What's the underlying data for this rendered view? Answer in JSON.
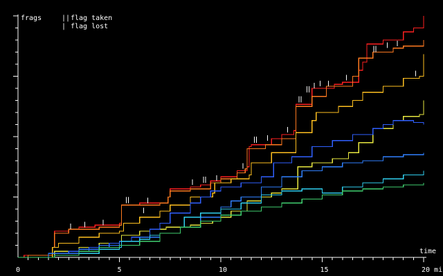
{
  "chart_data": {
    "type": "line",
    "title": "",
    "ylabel": "frags",
    "xlabel": "time",
    "x_tick_labels": [
      "0",
      "5",
      "10",
      "15",
      "20 min"
    ],
    "x_ticks": [
      0,
      5,
      10,
      15,
      20
    ],
    "xlim": [
      0,
      20
    ],
    "ylim": [
      0,
      120
    ],
    "y_major_ticks": [
      30,
      60,
      90,
      120
    ],
    "legend": [
      {
        "symbol": "||",
        "label": "flag taken"
      },
      {
        "symbol": "|",
        "label": "flag lost"
      }
    ],
    "grid": false,
    "series": [
      {
        "color": "#ff2020",
        "points": [
          [
            0,
            0
          ],
          [
            0.3,
            1
          ],
          [
            1.7,
            5
          ],
          [
            1.8,
            13
          ],
          [
            2.5,
            14
          ],
          [
            3,
            15
          ],
          [
            3.7,
            15
          ],
          [
            3.8,
            16
          ],
          [
            5,
            17
          ],
          [
            5.1,
            26
          ],
          [
            6,
            27
          ],
          [
            7.4,
            30
          ],
          [
            7.5,
            34
          ],
          [
            8.5,
            35
          ],
          [
            9,
            36
          ],
          [
            9.5,
            38
          ],
          [
            10,
            40
          ],
          [
            10.8,
            43
          ],
          [
            11.3,
            45
          ],
          [
            11.4,
            55
          ],
          [
            11.5,
            56
          ],
          [
            12.5,
            59
          ],
          [
            13,
            61
          ],
          [
            13.6,
            63
          ],
          [
            13.7,
            76
          ],
          [
            14.5,
            84
          ],
          [
            15.6,
            86
          ],
          [
            16,
            87
          ],
          [
            16.8,
            93
          ],
          [
            17,
            97
          ],
          [
            17.2,
            106
          ],
          [
            18,
            108
          ],
          [
            19,
            112
          ],
          [
            19.5,
            114
          ],
          [
            20,
            116
          ],
          [
            20,
            120
          ]
        ]
      },
      {
        "color": "#ff7a20",
        "points": [
          [
            0,
            0
          ],
          [
            0.5,
            1
          ],
          [
            1.7,
            5
          ],
          [
            1.8,
            12
          ],
          [
            2.5,
            14
          ],
          [
            3,
            14
          ],
          [
            4,
            15
          ],
          [
            5,
            16
          ],
          [
            5.1,
            26
          ],
          [
            6,
            26
          ],
          [
            7,
            27
          ],
          [
            7.4,
            30
          ],
          [
            7.5,
            33
          ],
          [
            8.5,
            34
          ],
          [
            9.5,
            37
          ],
          [
            10,
            39
          ],
          [
            10.8,
            42
          ],
          [
            11.2,
            44
          ],
          [
            11.3,
            54
          ],
          [
            12.2,
            56
          ],
          [
            13,
            59
          ],
          [
            13.7,
            75
          ],
          [
            14.5,
            80
          ],
          [
            15.2,
            85
          ],
          [
            16.5,
            90
          ],
          [
            16.8,
            99
          ],
          [
            17.5,
            102
          ],
          [
            18.5,
            104
          ],
          [
            19,
            105
          ],
          [
            20,
            108
          ]
        ]
      },
      {
        "color": "#ffc020",
        "points": [
          [
            0,
            0
          ],
          [
            1.7,
            5
          ],
          [
            2,
            7
          ],
          [
            3,
            10
          ],
          [
            4,
            12
          ],
          [
            5,
            13
          ],
          [
            5.2,
            17
          ],
          [
            6,
            20
          ],
          [
            7,
            23
          ],
          [
            7.5,
            26
          ],
          [
            8.5,
            30
          ],
          [
            9.6,
            32
          ],
          [
            9.7,
            37
          ],
          [
            10.5,
            39
          ],
          [
            11.4,
            41
          ],
          [
            11.5,
            47
          ],
          [
            12.5,
            52
          ],
          [
            13.7,
            62
          ],
          [
            14.5,
            68
          ],
          [
            14.7,
            72
          ],
          [
            15.8,
            75
          ],
          [
            16.5,
            78
          ],
          [
            17,
            82
          ],
          [
            18,
            85
          ],
          [
            19,
            89
          ],
          [
            19.8,
            90
          ],
          [
            20,
            101
          ]
        ]
      },
      {
        "color": "#e8e840",
        "points": [
          [
            0,
            0
          ],
          [
            1.8,
            3
          ],
          [
            3,
            5
          ],
          [
            4,
            7
          ],
          [
            5,
            8
          ],
          [
            5.1,
            11
          ],
          [
            6,
            13
          ],
          [
            6.5,
            14
          ],
          [
            7.3,
            15
          ],
          [
            8.5,
            16
          ],
          [
            9,
            17
          ],
          [
            9.6,
            18
          ],
          [
            10,
            20
          ],
          [
            10.5,
            23
          ],
          [
            11.3,
            28
          ],
          [
            12,
            30
          ],
          [
            12.5,
            32
          ],
          [
            13,
            34
          ],
          [
            13.8,
            45
          ],
          [
            14.5,
            47
          ],
          [
            15.5,
            49
          ],
          [
            16.3,
            52
          ],
          [
            16.8,
            57
          ],
          [
            17.5,
            64
          ],
          [
            18.5,
            68
          ],
          [
            19,
            70
          ],
          [
            19.8,
            71
          ],
          [
            20,
            78
          ]
        ]
      },
      {
        "color": "#3060ff",
        "points": [
          [
            0,
            0
          ],
          [
            1.5,
            2
          ],
          [
            2.5,
            3
          ],
          [
            3.5,
            5
          ],
          [
            4.5,
            7
          ],
          [
            5,
            8
          ],
          [
            5.6,
            10
          ],
          [
            6.5,
            14
          ],
          [
            7,
            17
          ],
          [
            7.5,
            22
          ],
          [
            8.5,
            27
          ],
          [
            9,
            30
          ],
          [
            9.5,
            33
          ],
          [
            10,
            35
          ],
          [
            11,
            37
          ],
          [
            12,
            40
          ],
          [
            12.6,
            47
          ],
          [
            13.5,
            50
          ],
          [
            14.5,
            55
          ],
          [
            15.5,
            58
          ],
          [
            16.5,
            61
          ],
          [
            17.5,
            64
          ],
          [
            18,
            66
          ],
          [
            18.5,
            68
          ],
          [
            19.5,
            67
          ],
          [
            20,
            66
          ]
        ]
      },
      {
        "color": "#3080ff",
        "points": [
          [
            0,
            0
          ],
          [
            1.5,
            2
          ],
          [
            3,
            4
          ],
          [
            4,
            6
          ],
          [
            5,
            8
          ],
          [
            6,
            10
          ],
          [
            7,
            12
          ],
          [
            8,
            15
          ],
          [
            9,
            20
          ],
          [
            10,
            25
          ],
          [
            10.5,
            28
          ],
          [
            11,
            30
          ],
          [
            12,
            35
          ],
          [
            13,
            40
          ],
          [
            14,
            43
          ],
          [
            15,
            45
          ],
          [
            16,
            47
          ],
          [
            17,
            48
          ],
          [
            18,
            50
          ],
          [
            19,
            51
          ],
          [
            20,
            52
          ]
        ]
      },
      {
        "color": "#30d0f0",
        "points": [
          [
            0,
            0
          ],
          [
            1.8,
            1
          ],
          [
            3,
            2
          ],
          [
            4,
            4
          ],
          [
            5,
            5
          ],
          [
            5.1,
            8
          ],
          [
            6,
            9
          ],
          [
            6.5,
            11
          ],
          [
            7,
            12
          ],
          [
            8,
            15
          ],
          [
            8.2,
            20
          ],
          [
            9,
            22
          ],
          [
            10,
            24
          ],
          [
            11,
            27
          ],
          [
            12,
            31
          ],
          [
            13,
            33
          ],
          [
            14,
            34
          ],
          [
            15,
            32
          ],
          [
            16,
            35
          ],
          [
            17,
            37
          ],
          [
            18,
            39
          ],
          [
            19,
            41
          ],
          [
            20,
            43
          ]
        ]
      },
      {
        "color": "#40d070",
        "points": [
          [
            0,
            0
          ],
          [
            1.8,
            1
          ],
          [
            3,
            3
          ],
          [
            4,
            5
          ],
          [
            5,
            6
          ],
          [
            6,
            8
          ],
          [
            7,
            12
          ],
          [
            8,
            15
          ],
          [
            9,
            18
          ],
          [
            10,
            21
          ],
          [
            11,
            23
          ],
          [
            12,
            25
          ],
          [
            13,
            27
          ],
          [
            14,
            29
          ],
          [
            15,
            31
          ],
          [
            16,
            33
          ],
          [
            17,
            34
          ],
          [
            18,
            35
          ],
          [
            19,
            36
          ],
          [
            20,
            37
          ]
        ]
      }
    ],
    "flags": {
      "taken": [
        {
          "series": 0,
          "x": 5.4,
          "y": 27
        },
        {
          "series": 0,
          "x": 9.2,
          "y": 37
        },
        {
          "series": 0,
          "x": 11.7,
          "y": 57
        },
        {
          "series": 0,
          "x": 13.9,
          "y": 77
        },
        {
          "series": 0,
          "x": 14.3,
          "y": 82
        },
        {
          "series": 1,
          "x": 17.6,
          "y": 102
        }
      ],
      "lost": [
        {
          "series": 0,
          "x": 2.6,
          "y": 14
        },
        {
          "series": 0,
          "x": 3.3,
          "y": 15
        },
        {
          "series": 0,
          "x": 4.2,
          "y": 16
        },
        {
          "series": 0,
          "x": 6.4,
          "y": 27
        },
        {
          "series": 0,
          "x": 6.2,
          "y": 22
        },
        {
          "series": 0,
          "x": 8.6,
          "y": 36
        },
        {
          "series": 0,
          "x": 9.8,
          "y": 38
        },
        {
          "series": 0,
          "x": 11.1,
          "y": 44
        },
        {
          "series": 0,
          "x": 12.3,
          "y": 58
        },
        {
          "series": 0,
          "x": 13.3,
          "y": 62
        },
        {
          "series": 0,
          "x": 14.6,
          "y": 84
        },
        {
          "series": 0,
          "x": 14.9,
          "y": 85
        },
        {
          "series": 0,
          "x": 15.3,
          "y": 85
        },
        {
          "series": 0,
          "x": 16.2,
          "y": 88
        },
        {
          "series": 1,
          "x": 18.2,
          "y": 104
        },
        {
          "series": 1,
          "x": 18.7,
          "y": 105
        },
        {
          "series": 2,
          "x": 19.6,
          "y": 90
        }
      ]
    }
  }
}
